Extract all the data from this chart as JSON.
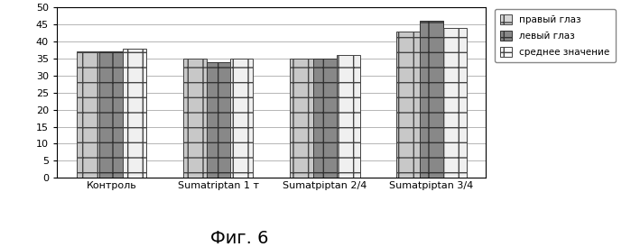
{
  "categories": [
    "Контроль",
    "Sumatriptan 1 т",
    "Sumatpiptan 2/4",
    "Sumatpiptan 3/4"
  ],
  "series": {
    "правый глаз": [
      37,
      35,
      35,
      43
    ],
    "левый глаз": [
      37,
      34,
      35,
      46
    ],
    "среднее значение": [
      38,
      35,
      36,
      44
    ]
  },
  "series_order": [
    "правый глаз",
    "левый глаз",
    "среднее значение"
  ],
  "bar_colors": [
    "#c8c8c8",
    "#888888",
    "#f0f0f0"
  ],
  "bar_hatch": [
    "+",
    "+",
    "+"
  ],
  "bar_edge_colors": [
    "#444444",
    "#333333",
    "#444444"
  ],
  "ylim": [
    0,
    50
  ],
  "yticks": [
    0,
    5,
    10,
    15,
    20,
    25,
    30,
    35,
    40,
    45,
    50
  ],
  "title": "Фиг. 6",
  "title_fontsize": 14,
  "legend_labels": [
    "правый глаз",
    "левый глаз",
    "среднее значение"
  ],
  "legend_colors": [
    "#d8d8d8",
    "#888888",
    "#f8f8f8"
  ],
  "background_color": "#ffffff",
  "plot_bg_color": "#ffffff",
  "grid_color": "#999999",
  "bar_width": 0.22,
  "tick_fontsize": 8,
  "xtick_fontsize": 8
}
